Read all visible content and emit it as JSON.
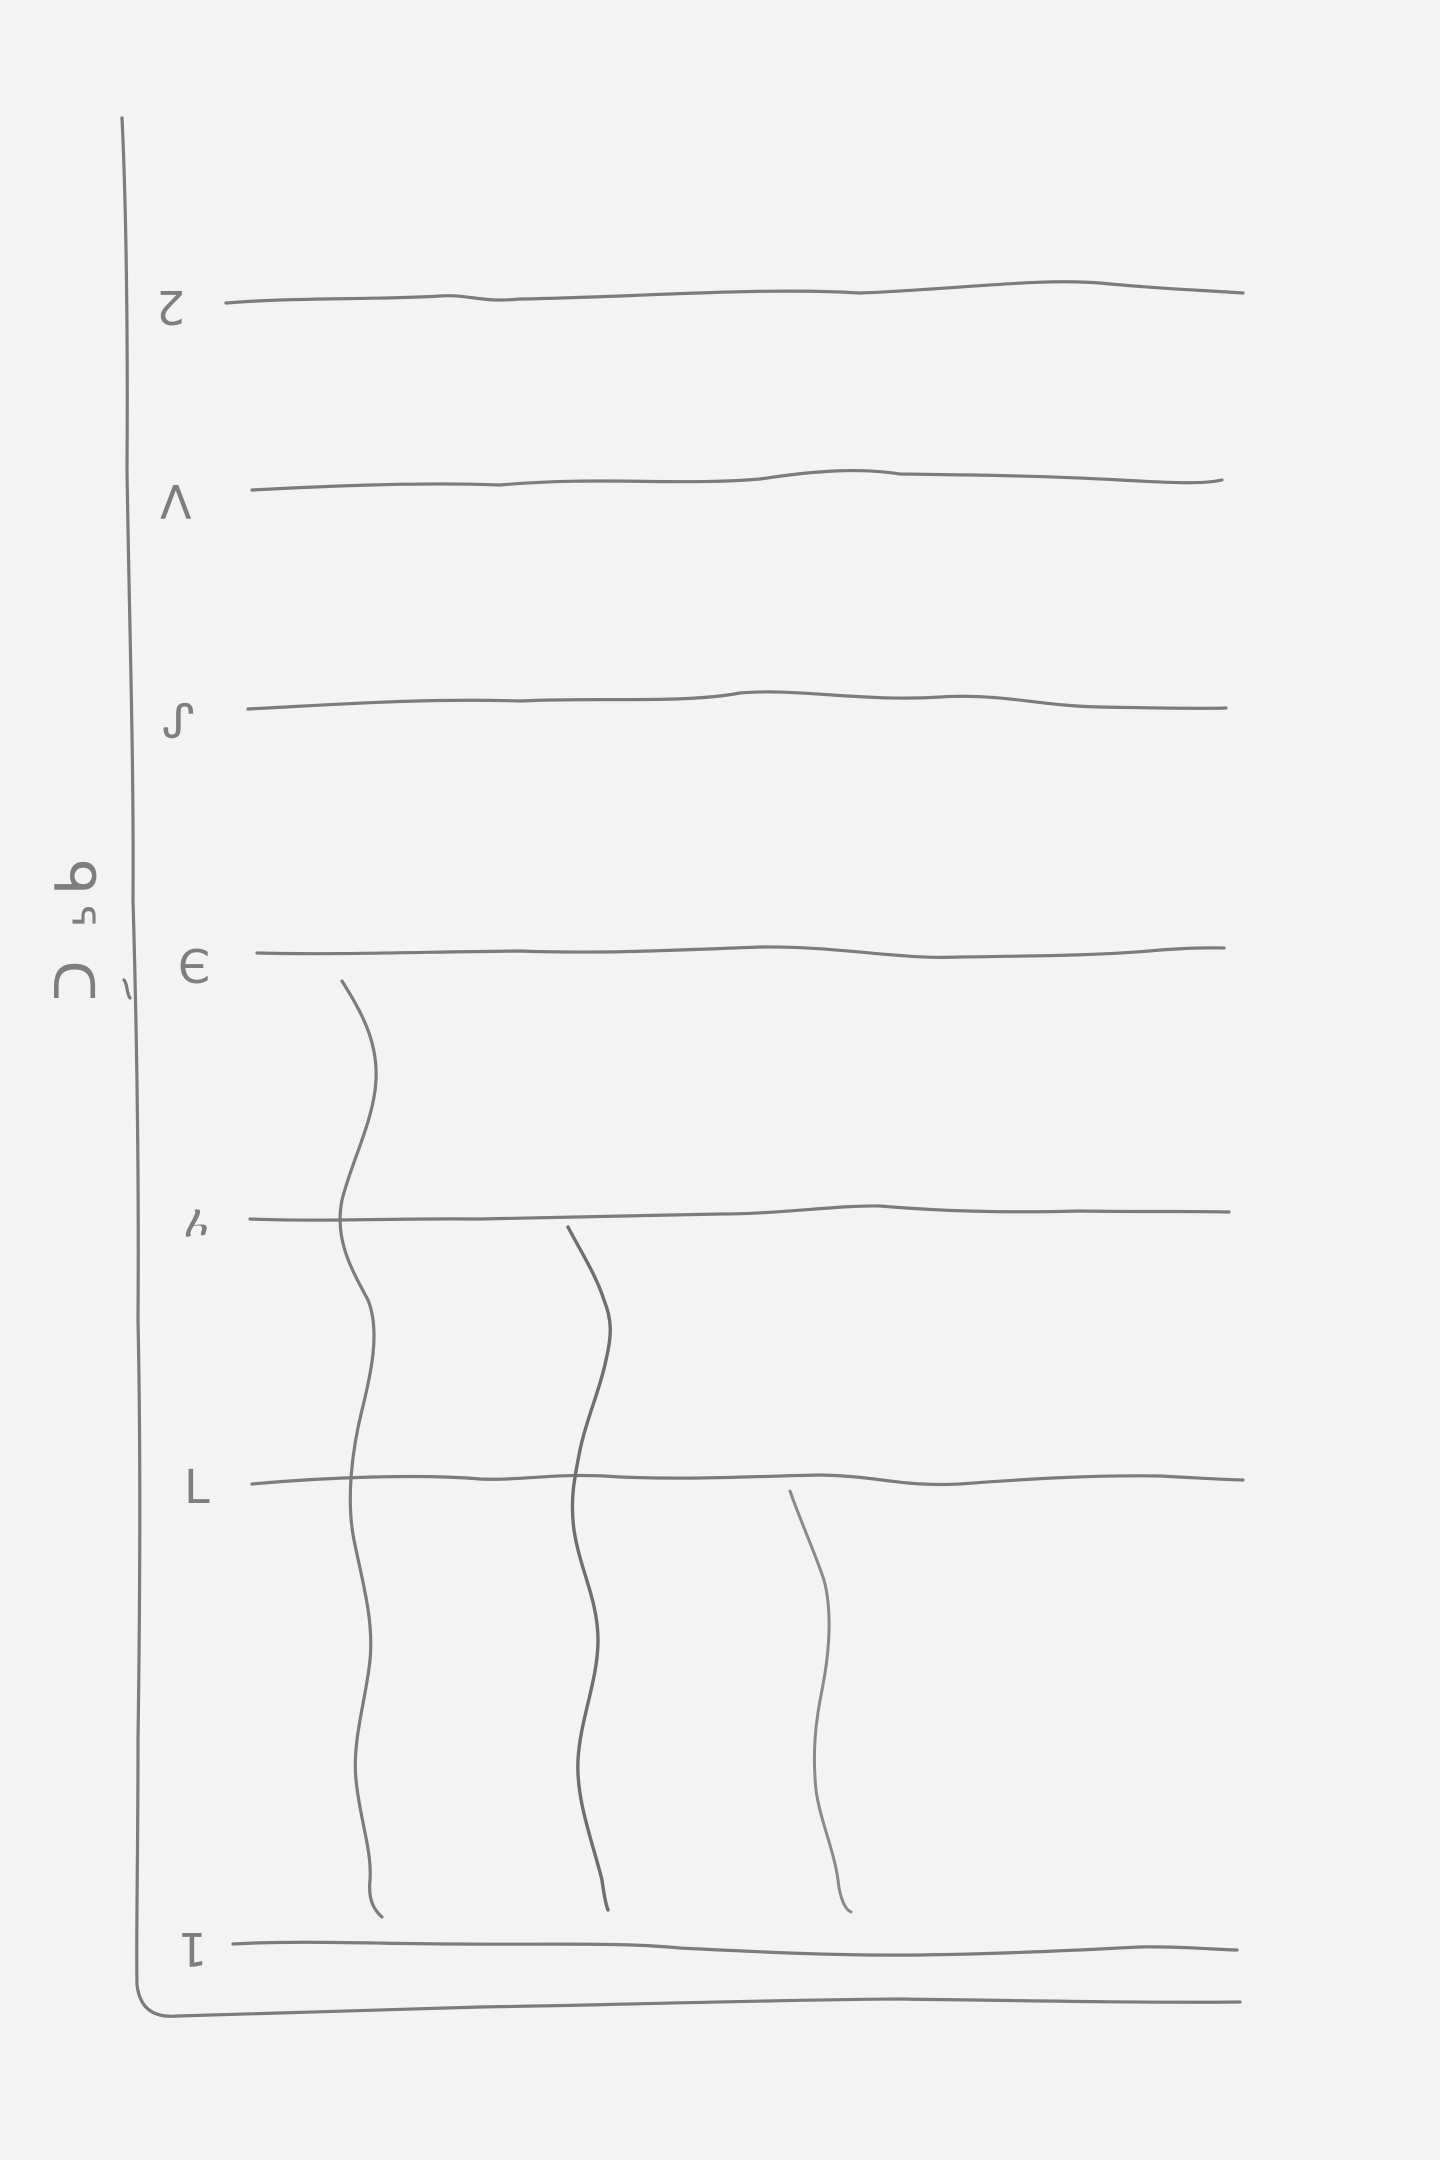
{
  "diagram": {
    "axis_label": "ᑫᕐ ᑕ",
    "level_labels": [
      "2",
      "V",
      "ᔑ",
      "Э",
      "ሃ",
      "ᒣ",
      "1"
    ],
    "colors": {
      "paper": "#f3f3f3",
      "pencil": "#7c7c7c"
    }
  }
}
